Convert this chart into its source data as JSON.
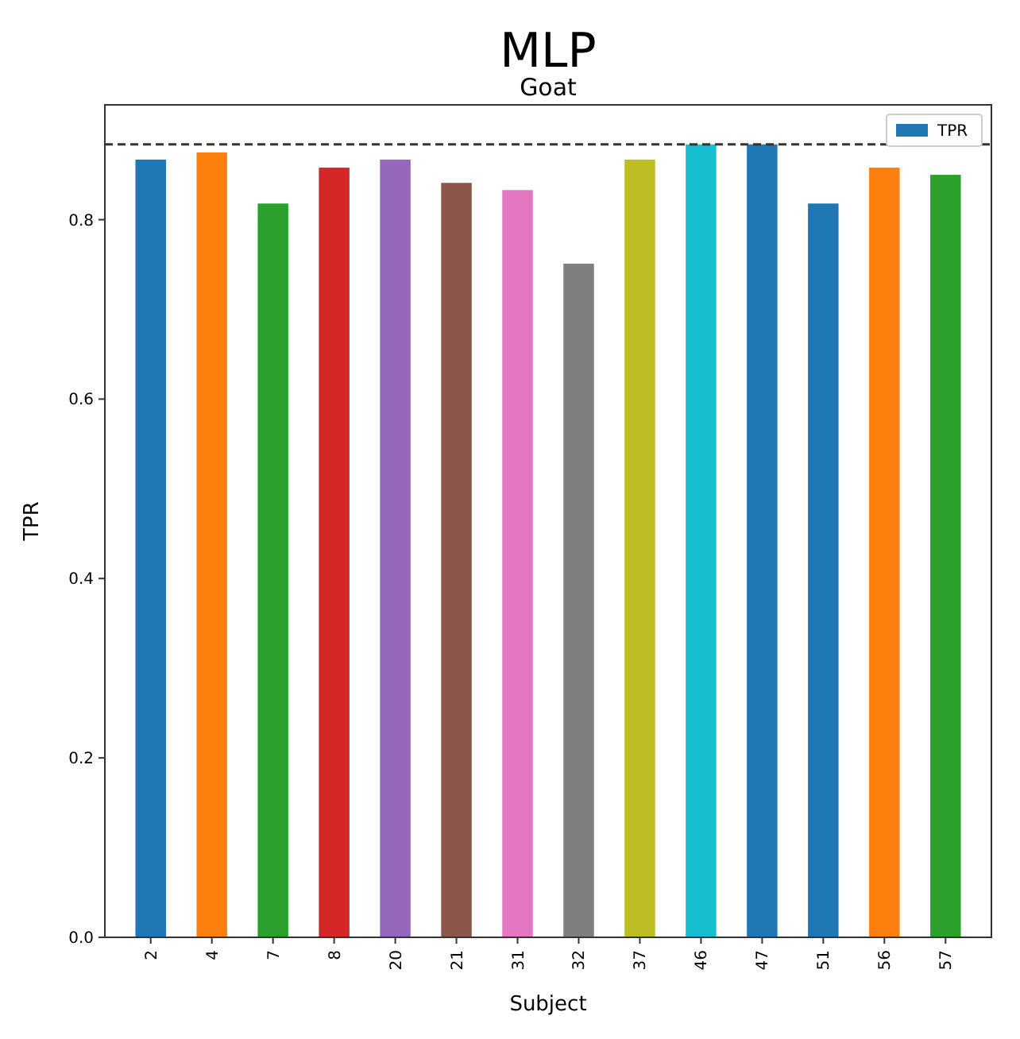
{
  "chart_data": {
    "type": "bar",
    "title": "MLP",
    "subtitle": "Goat",
    "xlabel": "Subject",
    "ylabel": "TPR",
    "categories": [
      "2",
      "4",
      "7",
      "8",
      "20",
      "21",
      "31",
      "32",
      "37",
      "46",
      "47",
      "51",
      "56",
      "57"
    ],
    "series": [
      {
        "name": "TPR",
        "color": "#1f77b4",
        "colors": [
          "#1f77b4",
          "#ff7f0e",
          "#2ca02c",
          "#d62728",
          "#9467bd",
          "#8c564b",
          "#e377c2",
          "#7f7f7f",
          "#bcbd22",
          "#17becf",
          "#1f77b4",
          "#1f77b4",
          "#ff7f0e",
          "#2ca02c"
        ],
        "values": [
          0.867,
          0.875,
          0.818,
          0.858,
          0.867,
          0.841,
          0.833,
          0.751,
          0.867,
          0.884,
          0.884,
          0.818,
          0.858,
          0.85
        ]
      }
    ],
    "ylim": [
      0,
      0.928
    ],
    "yticks": [
      {
        "value": 0,
        "label": "0.0"
      },
      {
        "value": 0.2,
        "label": "0.2"
      },
      {
        "value": 0.4,
        "label": "0.4"
      },
      {
        "value": 0.6,
        "label": "0.6"
      },
      {
        "value": 0.8,
        "label": "0.8"
      }
    ],
    "ref_lines": [
      {
        "axis": "y",
        "value": 0.884,
        "color": "#333333",
        "line_style": "dashed"
      }
    ],
    "legend": "top right",
    "grid": false
  }
}
